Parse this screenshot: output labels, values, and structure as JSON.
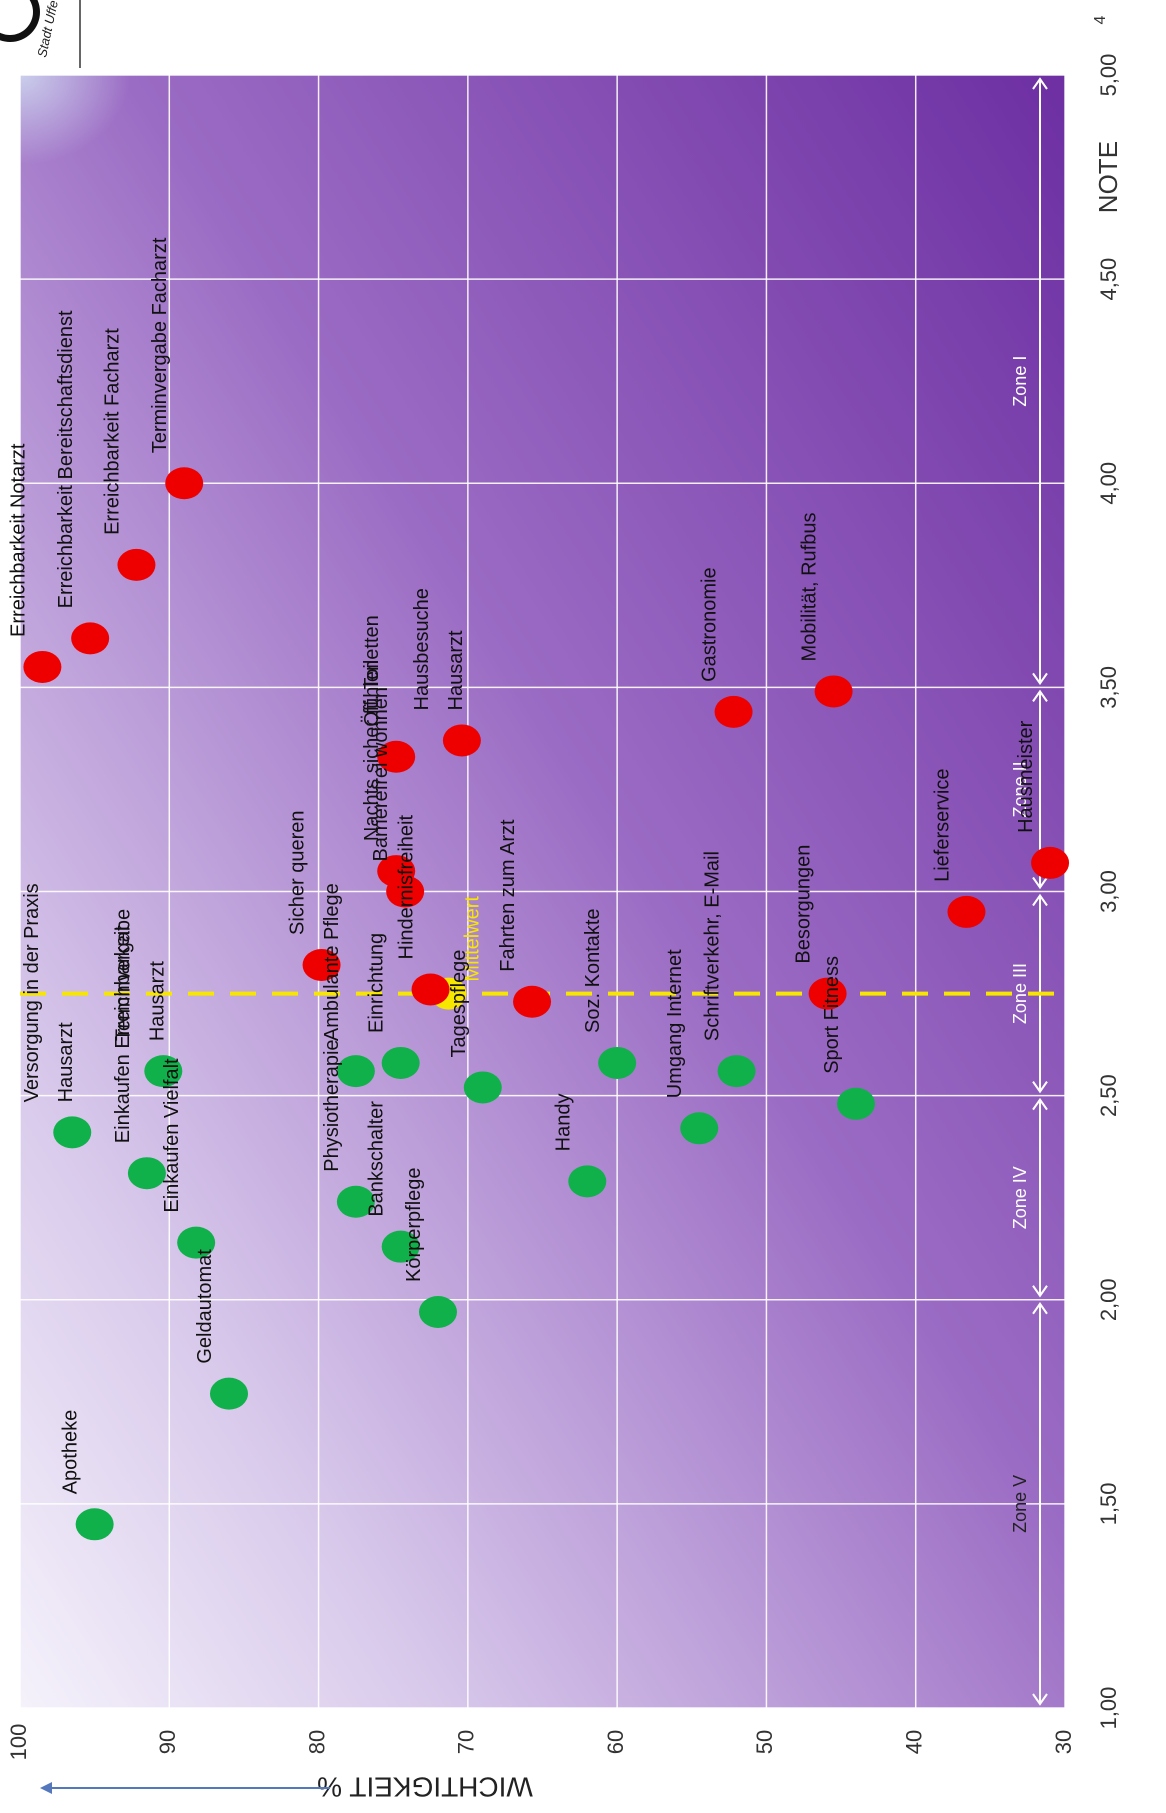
{
  "page_number": "4",
  "logo": {
    "text": "Stadt Uffe"
  },
  "chart_data": {
    "type": "scatter",
    "x_axis": {
      "label": "NOTE",
      "range": [
        1.0,
        5.0
      ],
      "ticks": [
        "1,00",
        "1,50",
        "2,00",
        "2,50",
        "3,00",
        "3,50",
        "4,00",
        "4,50",
        "5,00"
      ]
    },
    "y_axis": {
      "label": "WICHTIGKEIT %",
      "range": [
        30,
        100
      ],
      "ticks": [
        "30",
        "40",
        "50",
        "60",
        "70",
        "80",
        "90",
        "100"
      ]
    },
    "mean": {
      "label": "Mittelwert",
      "x": 2.75,
      "y": 71.3
    },
    "zones": [
      {
        "label": "Zone V",
        "from": 1.0,
        "to": 2.0
      },
      {
        "label": "Zone IV",
        "from": 2.0,
        "to": 2.5
      },
      {
        "label": "Zone III",
        "from": 2.5,
        "to": 3.0
      },
      {
        "label": "Zone II",
        "from": 3.0,
        "to": 3.5
      },
      {
        "label": "Zone I",
        "from": 3.5,
        "to": 5.0
      }
    ],
    "series": [
      {
        "color": "#ef0000",
        "points": [
          {
            "label": "Erreichbarkeit Notarzt",
            "x": 3.55,
            "y": 98.5
          },
          {
            "label": "Erreichbarkeit Bereitschaftsdienst",
            "x": 3.62,
            "y": 95.3
          },
          {
            "label": "Erreichbarkeit Facharzt",
            "x": 3.8,
            "y": 92.2
          },
          {
            "label": "Terminvergabe Facharzt",
            "x": 4.0,
            "y": 89.0
          },
          {
            "label": "Sicher queren",
            "x": 2.82,
            "y": 79.8
          },
          {
            "label": "Nachts sicher fühlen",
            "x": 3.05,
            "y": 74.8
          },
          {
            "label": "Barrierefrei wohnen",
            "x": 3.0,
            "y": 74.2
          },
          {
            "label": "Öff. Toiletten",
            "x": 3.33,
            "y": 74.8
          },
          {
            "label": "Hausbesuche Hausarzt",
            "x": 3.37,
            "y": 70.4
          },
          {
            "label": "Hindernisfreiheit",
            "x": 2.76,
            "y": 72.5
          },
          {
            "label": "Fahrten zum Arzt",
            "x": 2.73,
            "y": 65.7
          },
          {
            "label": "Gastronomie",
            "x": 3.44,
            "y": 52.2
          },
          {
            "label": "Mobilität, Rufbus",
            "x": 3.49,
            "y": 45.5
          },
          {
            "label": "Besorgungen",
            "x": 2.75,
            "y": 45.9
          },
          {
            "label": "Lieferservice",
            "x": 2.95,
            "y": 36.6
          },
          {
            "label": "Hausmeister",
            "x": 3.07,
            "y": 31.0
          }
        ]
      },
      {
        "color": "#10b14b",
        "points": [
          {
            "label": "Versorgung in der Praxis Hausarzt",
            "x": 2.41,
            "y": 96.5
          },
          {
            "label": "Terminvergabe Hausarzt",
            "x": 2.56,
            "y": 90.4
          },
          {
            "label": "Einkaufen Erreichbarkeit",
            "x": 2.31,
            "y": 91.5
          },
          {
            "label": "Einkaufen Vielfalt",
            "x": 2.14,
            "y": 88.2
          },
          {
            "label": "Geldautomat",
            "x": 1.77,
            "y": 86.0
          },
          {
            "label": "Apotheke",
            "x": 1.45,
            "y": 95.0
          },
          {
            "label": "Ambulante Pflege",
            "x": 2.56,
            "y": 77.5
          },
          {
            "label": "Einrichtung",
            "x": 2.58,
            "y": 74.5
          },
          {
            "label": "Physiotherapie",
            "x": 2.24,
            "y": 77.5
          },
          {
            "label": "Bankschalter",
            "x": 2.13,
            "y": 74.5
          },
          {
            "label": "Körperpflege",
            "x": 1.97,
            "y": 72.0
          },
          {
            "label": "Tagespflege",
            "x": 2.52,
            "y": 69.0
          },
          {
            "label": "Soz. Kontakte",
            "x": 2.58,
            "y": 60.0
          },
          {
            "label": "Handy",
            "x": 2.29,
            "y": 62.0
          },
          {
            "label": "Umgang Internet",
            "x": 2.42,
            "y": 54.5
          },
          {
            "label": "Schriftverkehr, E-Mail",
            "x": 2.56,
            "y": 52.0
          },
          {
            "label": "Sport Fitness",
            "x": 2.48,
            "y": 44.0
          }
        ]
      }
    ],
    "colors": {
      "bg_strong": "#7c3aa8",
      "bg_light": "#f4f1fa",
      "grid": "#ffffff",
      "mean_line": "#f7e600",
      "zone_lines": "#ffffff"
    }
  }
}
